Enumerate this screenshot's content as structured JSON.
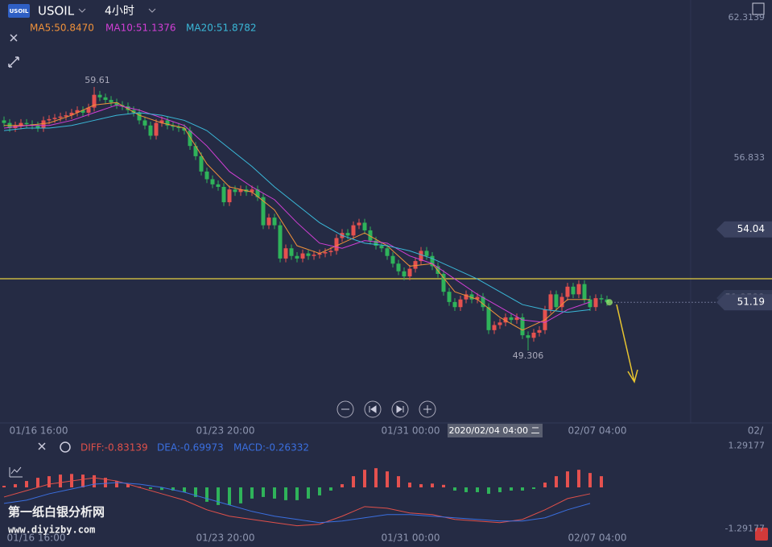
{
  "header": {
    "logo": "USOIL",
    "symbol": "USOIL",
    "period": "4小时"
  },
  "ma_legend": {
    "ma5": "MA5:50.8470",
    "ma10": "MA10:51.1376",
    "ma20": "MA20:51.8782"
  },
  "chart_data": {
    "type": "candlestick",
    "ylim": [
      46.63,
      63.006
    ],
    "yticks": [
      62.3139,
      56.833
    ],
    "price_marker": 54.04,
    "current_price": 51.19,
    "hidden_price": 51.3532,
    "hline": 52.11,
    "annotations": {
      "high": "59.61",
      "low": "49.306"
    },
    "up_color": "#e5514f",
    "down_color": "#2fb35a",
    "time_labels": [
      "01/16 16:00",
      "01/23 20:00",
      "01/31 00:00",
      "2020/02/04 04:00 二",
      "02/07 04:00",
      "02/"
    ],
    "candles": [
      [
        58.3,
        58.45,
        58.05,
        58.2
      ],
      [
        58.2,
        58.35,
        57.85,
        58.0
      ],
      [
        58.0,
        58.25,
        57.85,
        58.1
      ],
      [
        58.1,
        58.35,
        57.95,
        58.2
      ],
      [
        58.2,
        58.35,
        58.0,
        58.15
      ],
      [
        58.15,
        58.3,
        57.95,
        58.1
      ],
      [
        58.1,
        58.25,
        57.85,
        58.0
      ],
      [
        58.0,
        58.45,
        57.85,
        58.3
      ],
      [
        58.3,
        58.5,
        58.15,
        58.35
      ],
      [
        58.35,
        58.55,
        58.2,
        58.4
      ],
      [
        58.4,
        58.6,
        58.25,
        58.45
      ],
      [
        58.45,
        58.65,
        58.3,
        58.5
      ],
      [
        58.5,
        58.75,
        58.35,
        58.6
      ],
      [
        58.6,
        58.85,
        58.45,
        58.7
      ],
      [
        58.7,
        58.85,
        58.45,
        58.6
      ],
      [
        58.6,
        58.95,
        58.45,
        58.8
      ],
      [
        58.8,
        59.61,
        58.65,
        59.3
      ],
      [
        59.3,
        59.45,
        59.05,
        59.2
      ],
      [
        59.2,
        59.35,
        58.95,
        59.1
      ],
      [
        59.1,
        59.25,
        58.85,
        59.0
      ],
      [
        59.0,
        59.15,
        58.75,
        58.9
      ],
      [
        58.9,
        59.05,
        58.7,
        58.85
      ],
      [
        58.85,
        59.0,
        58.55,
        58.7
      ],
      [
        58.7,
        58.85,
        58.45,
        58.6
      ],
      [
        58.6,
        58.75,
        58.15,
        58.3
      ],
      [
        58.3,
        58.45,
        57.95,
        58.1
      ],
      [
        58.1,
        58.25,
        57.55,
        57.7
      ],
      [
        57.7,
        58.35,
        57.55,
        58.2
      ],
      [
        58.2,
        58.45,
        58.05,
        58.3
      ],
      [
        58.3,
        58.45,
        57.95,
        58.1
      ],
      [
        58.1,
        58.25,
        57.9,
        58.05
      ],
      [
        58.05,
        58.2,
        57.85,
        58.0
      ],
      [
        58.0,
        58.15,
        57.75,
        57.9
      ],
      [
        57.9,
        58.05,
        57.15,
        57.3
      ],
      [
        57.3,
        57.45,
        56.75,
        56.9
      ],
      [
        56.9,
        57.05,
        56.15,
        56.3
      ],
      [
        56.3,
        56.45,
        55.85,
        56.0
      ],
      [
        56.0,
        56.15,
        55.65,
        55.8
      ],
      [
        55.8,
        55.95,
        55.55,
        55.7
      ],
      [
        55.7,
        55.85,
        54.95,
        55.1
      ],
      [
        55.1,
        55.75,
        54.95,
        55.6
      ],
      [
        55.6,
        55.75,
        55.35,
        55.5
      ],
      [
        55.5,
        55.75,
        55.35,
        55.6
      ],
      [
        55.6,
        55.75,
        55.35,
        55.5
      ],
      [
        55.5,
        55.75,
        55.35,
        55.6
      ],
      [
        55.6,
        55.75,
        55.15,
        55.3
      ],
      [
        55.3,
        55.45,
        54.05,
        54.2
      ],
      [
        54.2,
        54.65,
        54.05,
        54.5
      ],
      [
        54.5,
        54.65,
        54.05,
        54.2
      ],
      [
        54.2,
        54.35,
        52.75,
        52.9
      ],
      [
        52.9,
        53.45,
        52.75,
        53.3
      ],
      [
        53.3,
        53.45,
        52.85,
        53.0
      ],
      [
        53.0,
        53.15,
        52.75,
        52.9
      ],
      [
        52.9,
        53.25,
        52.75,
        53.1
      ],
      [
        53.1,
        53.25,
        52.85,
        53.0
      ],
      [
        53.0,
        53.2,
        52.85,
        53.05
      ],
      [
        53.05,
        53.25,
        52.9,
        53.1
      ],
      [
        53.1,
        53.3,
        52.95,
        53.15
      ],
      [
        53.15,
        53.35,
        53.0,
        53.2
      ],
      [
        53.2,
        53.85,
        53.05,
        53.7
      ],
      [
        53.7,
        54.05,
        53.55,
        53.9
      ],
      [
        53.9,
        54.05,
        53.65,
        53.8
      ],
      [
        53.8,
        54.35,
        53.65,
        54.2
      ],
      [
        54.2,
        54.45,
        54.05,
        54.3
      ],
      [
        54.3,
        54.45,
        53.85,
        54.0
      ],
      [
        54.0,
        54.15,
        53.45,
        53.6
      ],
      [
        53.6,
        53.75,
        53.25,
        53.4
      ],
      [
        53.4,
        53.55,
        53.15,
        53.3
      ],
      [
        53.3,
        53.45,
        52.85,
        53.0
      ],
      [
        53.0,
        53.15,
        52.55,
        52.7
      ],
      [
        52.7,
        52.85,
        52.25,
        52.4
      ],
      [
        52.4,
        52.55,
        52.05,
        52.2
      ],
      [
        52.2,
        52.65,
        52.05,
        52.5
      ],
      [
        52.5,
        52.95,
        52.35,
        52.8
      ],
      [
        52.8,
        53.35,
        52.65,
        53.2
      ],
      [
        53.2,
        53.35,
        52.85,
        53.0
      ],
      [
        53.0,
        53.15,
        52.45,
        52.6
      ],
      [
        52.6,
        52.75,
        52.15,
        52.3
      ],
      [
        52.3,
        52.45,
        51.45,
        51.6
      ],
      [
        51.6,
        51.75,
        51.05,
        51.2
      ],
      [
        51.2,
        51.35,
        50.85,
        51.0
      ],
      [
        51.0,
        51.45,
        50.85,
        51.3
      ],
      [
        51.3,
        51.65,
        51.15,
        51.5
      ],
      [
        51.5,
        51.65,
        51.15,
        51.3
      ],
      [
        51.3,
        51.55,
        51.15,
        51.4
      ],
      [
        51.4,
        51.55,
        50.85,
        51.0
      ],
      [
        51.0,
        51.15,
        49.95,
        50.1
      ],
      [
        50.1,
        50.45,
        49.95,
        50.3
      ],
      [
        50.3,
        50.55,
        50.15,
        50.4
      ],
      [
        50.4,
        50.75,
        50.25,
        50.6
      ],
      [
        50.6,
        50.75,
        50.35,
        50.5
      ],
      [
        50.5,
        50.75,
        50.35,
        50.6
      ],
      [
        50.6,
        50.75,
        49.75,
        49.9
      ],
      [
        49.9,
        50.05,
        49.306,
        49.8
      ],
      [
        49.8,
        50.15,
        49.65,
        50.0
      ],
      [
        50.0,
        50.25,
        49.85,
        50.1
      ],
      [
        50.1,
        51.05,
        49.95,
        50.9
      ],
      [
        50.9,
        51.65,
        50.75,
        51.5
      ],
      [
        51.5,
        51.65,
        50.85,
        51.0
      ],
      [
        51.0,
        51.55,
        50.85,
        51.4
      ],
      [
        51.4,
        51.95,
        51.25,
        51.8
      ],
      [
        51.8,
        51.95,
        51.35,
        51.5
      ],
      [
        51.5,
        52.05,
        51.35,
        51.9
      ],
      [
        51.9,
        52.05,
        51.15,
        51.3
      ],
      [
        51.3,
        51.45,
        50.85,
        51.0
      ],
      [
        51.0,
        51.5,
        50.85,
        51.35
      ],
      [
        51.35,
        51.5,
        51.15,
        51.3
      ],
      [
        51.3,
        51.45,
        51.05,
        51.19
      ]
    ],
    "ma_series": [
      {
        "color": "#f0913a",
        "values": [
          58.1,
          58.1,
          58.2,
          58.5,
          58.9,
          59.0,
          58.5,
          58.2,
          58.0,
          56.6,
          55.7,
          55.5,
          54.8,
          53.4,
          53.1,
          53.5,
          53.9,
          53.4,
          52.6,
          52.7,
          51.6,
          51.3,
          50.6,
          50.1,
          50.5,
          51.3,
          51.3
        ]
      },
      {
        "color": "#d23fd6",
        "values": [
          58.0,
          58.1,
          58.1,
          58.3,
          58.6,
          58.9,
          58.7,
          58.4,
          58.1,
          57.3,
          56.3,
          55.7,
          55.2,
          54.3,
          53.5,
          53.3,
          53.6,
          53.5,
          53.0,
          52.7,
          52.1,
          51.5,
          51.0,
          50.5,
          50.4,
          50.9,
          51.2
        ]
      },
      {
        "color": "#3ab8d8",
        "values": [
          57.9,
          58.0,
          58.0,
          58.1,
          58.3,
          58.5,
          58.6,
          58.5,
          58.3,
          57.9,
          57.2,
          56.5,
          55.7,
          55.0,
          54.3,
          53.8,
          53.5,
          53.4,
          53.2,
          52.9,
          52.5,
          52.1,
          51.6,
          51.1,
          50.9,
          50.8,
          50.9
        ]
      }
    ]
  },
  "macd_data": {
    "type": "bar",
    "legend": {
      "diff": "DIFF:-0.83139",
      "dea": "DEA:-0.69973",
      "macd": "MACD:-0.26332"
    },
    "ylim": [
      -1.51,
      1.51
    ],
    "yticks": [
      1.29177,
      -1.29177
    ],
    "time_labels": [
      "01/16 16:00",
      "01/23 20:00",
      "01/31 00:00",
      "02/07 04:00"
    ],
    "histogram": [
      0.05,
      0.1,
      0.2,
      0.3,
      0.35,
      0.4,
      0.42,
      0.4,
      0.38,
      0.3,
      0.2,
      0.1,
      0.02,
      -0.05,
      -0.08,
      -0.1,
      -0.15,
      -0.3,
      -0.45,
      -0.55,
      -0.55,
      -0.5,
      -0.35,
      -0.3,
      -0.35,
      -0.4,
      -0.4,
      -0.35,
      -0.25,
      -0.1,
      0.1,
      0.35,
      0.55,
      0.6,
      0.5,
      0.35,
      0.15,
      0.1,
      0.12,
      0.08,
      -0.1,
      -0.15,
      -0.15,
      -0.2,
      -0.15,
      -0.1,
      -0.1,
      -0.05,
      0.15,
      0.35,
      0.5,
      0.55,
      0.45,
      0.35
    ],
    "series": [
      {
        "color": "#e0504a",
        "values": [
          -0.3,
          -0.1,
          0.1,
          0.2,
          0.3,
          0.2,
          0.0,
          -0.2,
          -0.4,
          -0.7,
          -0.9,
          -1.0,
          -1.1,
          -1.2,
          -1.15,
          -0.9,
          -0.6,
          -0.65,
          -0.8,
          -0.85,
          -1.0,
          -1.05,
          -1.1,
          -1.0,
          -0.7,
          -0.35,
          -0.2
        ]
      },
      {
        "color": "#3a6fe0",
        "values": [
          -0.5,
          -0.4,
          -0.2,
          -0.05,
          0.1,
          0.15,
          0.1,
          0.0,
          -0.15,
          -0.35,
          -0.55,
          -0.75,
          -0.9,
          -1.0,
          -1.1,
          -1.05,
          -0.95,
          -0.85,
          -0.85,
          -0.9,
          -0.95,
          -1.0,
          -1.05,
          -1.05,
          -0.95,
          -0.7,
          -0.5
        ]
      }
    ]
  },
  "watermark": {
    "line1": "第一纸白银分析网",
    "line2": "www.diyizby.com"
  }
}
